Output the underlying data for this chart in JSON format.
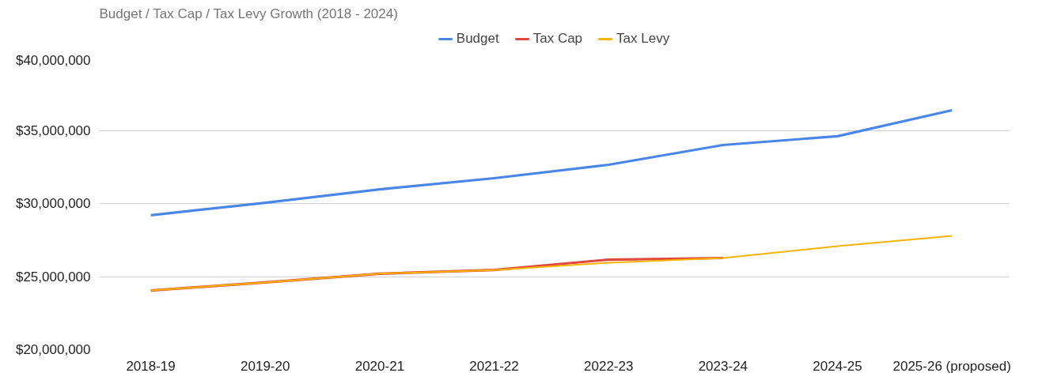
{
  "chart_data": {
    "type": "line",
    "title": "Budget / Tax Cap / Tax Levy Growth (2018 - 2024)",
    "categories": [
      "2018-19",
      "2019-20",
      "2020-21",
      "2021-22",
      "2022-23",
      "2023-24",
      "2024-25",
      "2025-26 (proposed)"
    ],
    "series": [
      {
        "name": "Budget",
        "color": "#4a86e8",
        "values": [
          29200000,
          30050000,
          30970000,
          31730000,
          32650000,
          34000000,
          34600000,
          36380000
        ]
      },
      {
        "name": "Tax Cap",
        "color": "#e0483e",
        "values": [
          24050000,
          24600000,
          25200000,
          25450000,
          26160000,
          26270000,
          null,
          null
        ]
      },
      {
        "name": "Tax Levy",
        "color": "#f4b400",
        "values": [
          24050000,
          24600000,
          25200000,
          25450000,
          25950000,
          26270000,
          27080000,
          27780000
        ]
      }
    ],
    "ylim": [
      20000000,
      40000000
    ],
    "yticks": [
      {
        "value": 20000000,
        "label": "$20,000,000"
      },
      {
        "value": 25000000,
        "label": "$25,000,000"
      },
      {
        "value": 30000000,
        "label": "$30,000,000"
      },
      {
        "value": 35000000,
        "label": "$35,000,000"
      },
      {
        "value": 40000000,
        "label": "$40,000,000"
      }
    ],
    "grid": "y",
    "legend": "top",
    "marker": "none",
    "line_style": "solid"
  }
}
